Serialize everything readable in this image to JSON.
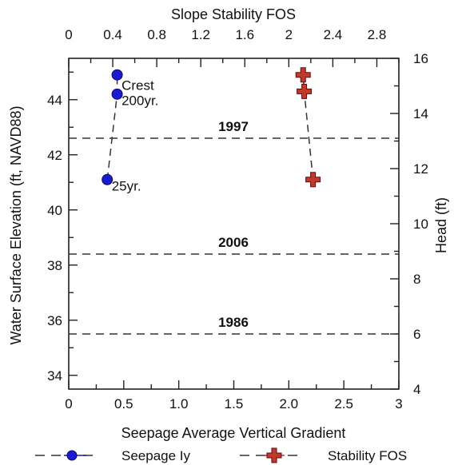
{
  "chart_data": {
    "type": "scatter",
    "title": "",
    "axes": {
      "x_bottom": {
        "label": "Seepage Average Vertical Gradient",
        "range": [
          0,
          3
        ],
        "ticks": [
          0,
          0.5,
          1,
          1.5,
          2,
          2.5,
          3
        ],
        "tick_labels": [
          "0",
          "0.5",
          "1.0",
          "1.5",
          "2.0",
          "2.5",
          "3"
        ]
      },
      "x_top": {
        "label": "Slope Stability FOS",
        "range": [
          0,
          3
        ],
        "ticks": [
          0,
          0.4,
          0.8,
          1.2,
          1.6,
          2,
          2.4,
          2.8
        ],
        "tick_labels": [
          "0",
          "0.4",
          "0.8",
          "1.2",
          "1.6",
          "2",
          "2.4",
          "2.8"
        ]
      },
      "y_left": {
        "label": "Water Surface Elevation (ft, NAVD88)",
        "range": [
          33.5,
          45.5
        ],
        "ticks": [
          34,
          36,
          38,
          40,
          42,
          44
        ],
        "tick_labels": [
          "34",
          "36",
          "38",
          "40",
          "42",
          "44"
        ]
      },
      "y_right": {
        "label": "Head (ft)",
        "range": [
          4,
          16
        ],
        "ticks": [
          4,
          6,
          8,
          10,
          12,
          14,
          16
        ],
        "tick_labels": [
          "4",
          "6",
          "8",
          "10",
          "12",
          "14",
          "16"
        ]
      }
    },
    "series": [
      {
        "name": "Seepage Iy",
        "axis": "x_bottom",
        "color": "#1a1aa8",
        "marker": "circle",
        "x": [
          0.35,
          0.44,
          0.44
        ],
        "y": [
          41.1,
          44.2,
          44.9
        ]
      },
      {
        "name": "Stability FOS",
        "axis": "x_top",
        "color": "#c0392b",
        "marker": "plus",
        "x": [
          2.22,
          2.14,
          2.13
        ],
        "y": [
          41.1,
          44.3,
          44.9
        ]
      }
    ],
    "point_labels": [
      {
        "text": "Crest",
        "x": 0.48,
        "y": 44.35
      },
      {
        "text": "200yr.",
        "x": 0.48,
        "y": 43.8
      },
      {
        "text": "25yr.",
        "x": 0.39,
        "y": 40.7
      }
    ],
    "reference_lines": [
      {
        "label": "1997",
        "y": 42.6
      },
      {
        "label": "2006",
        "y": 38.4
      },
      {
        "label": "1986",
        "y": 35.5
      }
    ],
    "grid": false,
    "legend_position": "bottom",
    "legend": [
      "Seepage Iy",
      "Stability FOS"
    ]
  }
}
